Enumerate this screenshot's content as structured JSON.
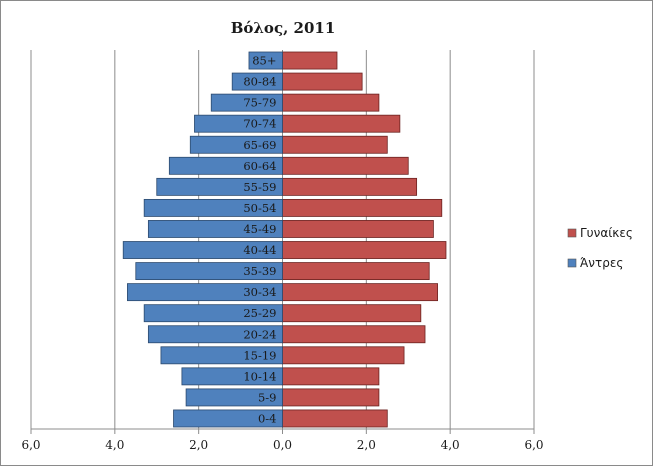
{
  "chart_data": {
    "type": "bar",
    "orientation": "horizontal",
    "title": "Βόλος, 2011",
    "categories": [
      "0-4",
      "5-9",
      "10-14",
      "15-19",
      "20-24",
      "25-29",
      "30-34",
      "35-39",
      "40-44",
      "45-49",
      "50-54",
      "55-59",
      "60-64",
      "65-69",
      "70-74",
      "75-79",
      "80-84",
      "85+"
    ],
    "series": [
      {
        "name": "Γυναίκες",
        "color": "#c0504d",
        "values": [
          2.5,
          2.3,
          2.3,
          2.9,
          3.4,
          3.3,
          3.7,
          3.5,
          3.9,
          3.6,
          3.8,
          3.2,
          3.0,
          2.5,
          2.8,
          2.3,
          1.9,
          1.3
        ]
      },
      {
        "name": "Άντρες",
        "color": "#4f81bd",
        "values": [
          2.6,
          2.3,
          2.4,
          2.9,
          3.2,
          3.3,
          3.7,
          3.5,
          3.8,
          3.2,
          3.3,
          3.0,
          2.7,
          2.2,
          2.1,
          1.7,
          1.2,
          0.8
        ]
      }
    ],
    "xlim": [
      -6,
      6
    ],
    "xticks": [
      -6,
      -4,
      -2,
      0,
      2,
      4,
      6
    ],
    "xtick_labels": [
      "6,0",
      "4,0",
      "2,0",
      "0,0",
      "2,0",
      "4,0",
      "6,0"
    ],
    "xlabel": "",
    "ylabel": "",
    "grid": "vertical",
    "legend": "right"
  }
}
